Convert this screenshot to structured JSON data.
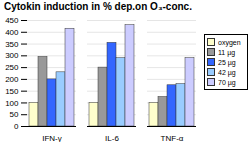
{
  "chart_data": {
    "type": "bar",
    "title": "Cytokin induction in % dep.on O₃-conc.",
    "categories": [
      "IFN-γ",
      "IL-6",
      "TNF-α"
    ],
    "series": [
      {
        "name": "oxygen",
        "color": "#ffffcc",
        "values": [
          100,
          100,
          100
        ]
      },
      {
        "name": "11 µg",
        "color": "#999999",
        "values": [
          295,
          250,
          125
        ]
      },
      {
        "name": "25 µg",
        "color": "#3366ff",
        "values": [
          200,
          355,
          175
        ]
      },
      {
        "name": "42 µg",
        "color": "#99ccff",
        "values": [
          230,
          290,
          180
        ]
      },
      {
        "name": "70 µg",
        "color": "#ccccff",
        "values": [
          415,
          430,
          290
        ]
      }
    ],
    "ylim": [
      0,
      450
    ],
    "yticks": [
      0,
      50,
      100,
      150,
      200,
      250,
      300,
      350,
      400,
      450
    ],
    "grid": true,
    "legend": "right"
  }
}
